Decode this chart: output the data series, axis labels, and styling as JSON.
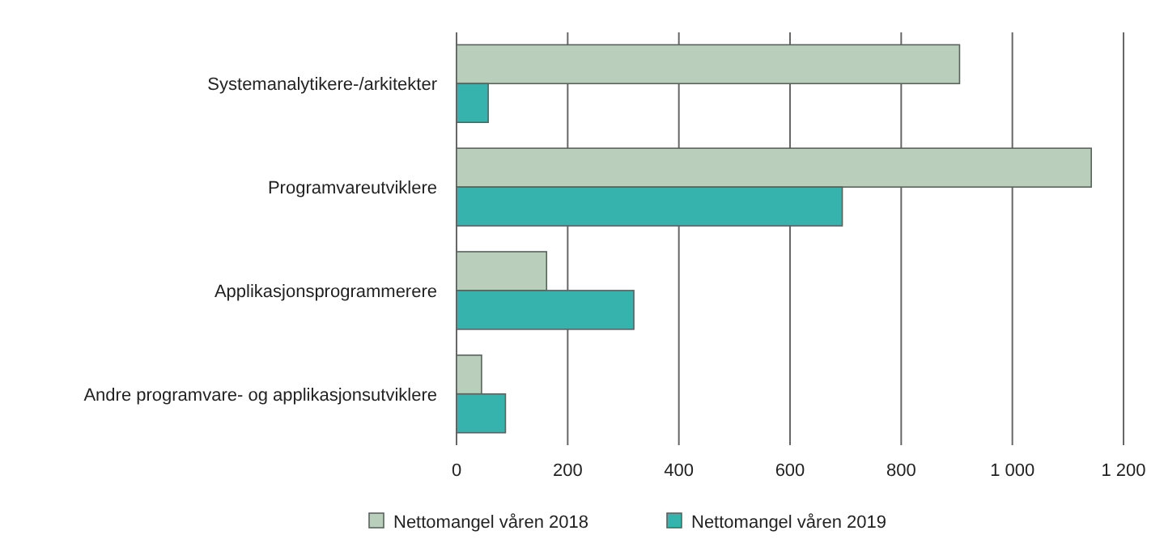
{
  "chart_data": {
    "type": "bar",
    "orientation": "horizontal",
    "categories": [
      "Systemanalytikere-/arkitekter",
      "Programvareutviklere",
      "Applikasjonsprogrammerere",
      "Andre programvare- og applikasjonsutviklere"
    ],
    "series": [
      {
        "name": "Nettomangel våren 2018",
        "color": "#b9cfbb",
        "values": [
          905,
          1142,
          162,
          45
        ]
      },
      {
        "name": "Nettomangel våren 2019",
        "color": "#36b3ad",
        "values": [
          57,
          694,
          319,
          88
        ]
      }
    ],
    "xlim": [
      0,
      1200
    ],
    "xticks": [
      0,
      200,
      400,
      600,
      800,
      {
        "value": 1000,
        "label": "1 000"
      },
      {
        "value": 1200,
        "label": "1 200"
      }
    ],
    "grid": "x",
    "legend": "bottom"
  }
}
